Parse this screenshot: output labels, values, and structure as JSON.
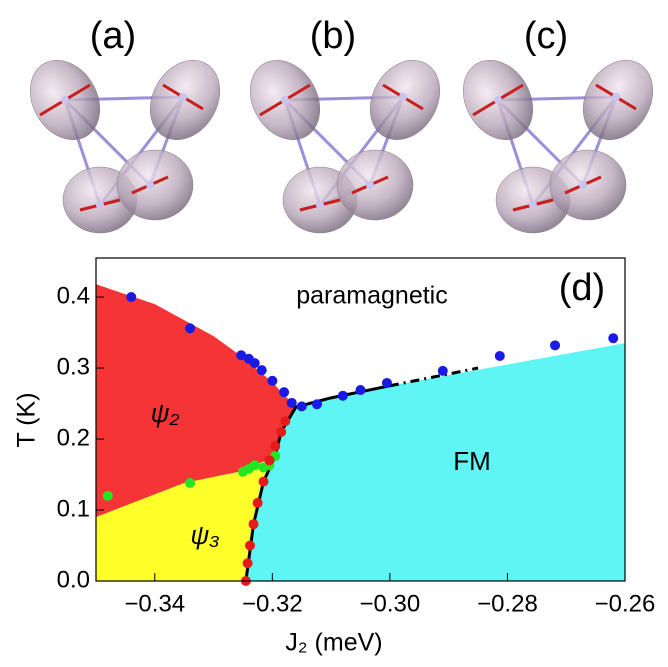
{
  "panels": [
    "(a)",
    "(b)",
    "(c)"
  ],
  "chart_data": {
    "type": "scatter",
    "panel_label": "(d)",
    "xlabel": "J₂ (meV)",
    "ylabel": "T (K)",
    "xlim": [
      -0.35,
      -0.26
    ],
    "ylim": [
      0,
      0.455
    ],
    "xticks": [
      {
        "value": -0.34,
        "label": "−0.34"
      },
      {
        "value": -0.32,
        "label": "−0.32"
      },
      {
        "value": -0.3,
        "label": "−0.30"
      },
      {
        "value": -0.28,
        "label": "−0.28"
      },
      {
        "value": -0.26,
        "label": "−0.26"
      }
    ],
    "yticks": [
      {
        "value": 0,
        "label": "0.0"
      },
      0.1,
      0.2,
      0.3,
      0.4
    ],
    "regions": [
      {
        "label": "ψ₂",
        "color": "#f53535",
        "x": [
          -0.35,
          -0.34,
          -0.33,
          -0.325,
          -0.32,
          -0.316,
          -0.3185,
          -0.3195,
          -0.325,
          -0.335,
          -0.35
        ],
        "y": [
          0.418,
          0.39,
          0.345,
          0.315,
          0.28,
          0.245,
          0.21,
          0.176,
          0.155,
          0.138,
          0.09
        ]
      },
      {
        "label": "ψ₃",
        "color": "#ffff2a",
        "x": [
          -0.35,
          -0.335,
          -0.325,
          -0.3195,
          -0.3232,
          -0.3245,
          -0.35
        ],
        "y": [
          0.09,
          0.138,
          0.155,
          0.176,
          0.08,
          0,
          0
        ]
      },
      {
        "label": "FM",
        "color": "#5ff5f5",
        "x": [
          -0.3245,
          -0.3225,
          -0.3195,
          -0.3185,
          -0.316,
          -0.31,
          -0.3,
          -0.28,
          -0.26,
          -0.26
        ],
        "y": [
          0,
          0.11,
          0.176,
          0.21,
          0.245,
          0.258,
          0.275,
          0.305,
          0.335,
          0
        ]
      }
    ],
    "region_text": "paramagnetic",
    "boundary": {
      "x": [
        -0.3245,
        -0.3232,
        -0.3215,
        -0.3195,
        -0.3185,
        -0.316,
        -0.31,
        -0.3
      ],
      "y": [
        0,
        0.08,
        0.14,
        0.176,
        0.21,
        0.245,
        0.258,
        0.275
      ]
    },
    "dashed_boundary": {
      "x": [
        -0.3,
        -0.285
      ],
      "y": [
        0.275,
        0.3
      ]
    },
    "series": [
      {
        "color": "#1a1ae6",
        "x": [
          -0.344,
          -0.334,
          -0.3253,
          -0.324,
          -0.323,
          -0.3218,
          -0.32,
          -0.318,
          -0.3167,
          -0.315,
          -0.3124,
          -0.308,
          -0.305,
          -0.3005,
          -0.291,
          -0.2813,
          -0.2719,
          -0.262
        ],
        "values": [
          0.4,
          0.356,
          0.318,
          0.313,
          0.307,
          0.297,
          0.282,
          0.266,
          0.251,
          0.246,
          0.249,
          0.261,
          0.269,
          0.279,
          0.296,
          0.317,
          0.332,
          0.342
        ]
      },
      {
        "color": "#22e622",
        "x": [
          -0.348,
          -0.334,
          -0.325,
          -0.324,
          -0.323,
          -0.3215,
          -0.3205,
          -0.3195
        ],
        "values": [
          0.12,
          0.138,
          0.154,
          0.158,
          0.163,
          0.16,
          0.163,
          0.176
        ]
      },
      {
        "color": "#e61a1a",
        "x": [
          -0.3245,
          -0.3242,
          -0.3238,
          -0.3232,
          -0.3225,
          -0.3215,
          -0.3205,
          -0.3195,
          -0.3185,
          -0.3178
        ],
        "values": [
          0,
          0.025,
          0.05,
          0.08,
          0.11,
          0.14,
          0.17,
          0.19,
          0.21,
          0.225
        ]
      }
    ]
  }
}
